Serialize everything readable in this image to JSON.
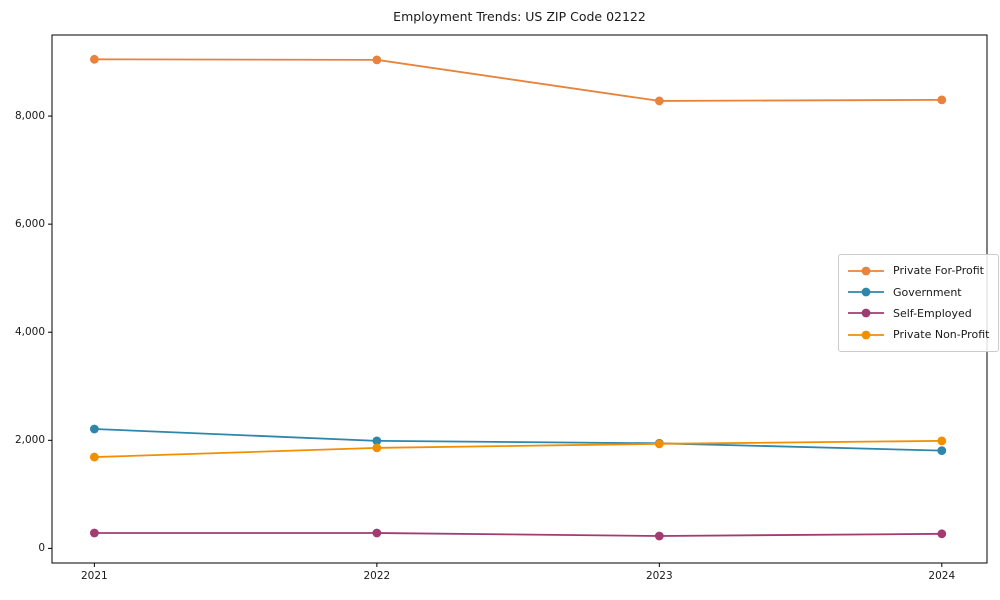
{
  "chart_data": {
    "type": "line",
    "title": "Employment Trends: US ZIP Code 02122",
    "x": [
      2021,
      2022,
      2023,
      2024
    ],
    "x_tick_labels": [
      "2021",
      "2022",
      "2023",
      "2024"
    ],
    "xlabel": "",
    "ylabel": "",
    "xlim": [
      2020.85,
      2024.16
    ],
    "ylim": [
      -270,
      9500
    ],
    "grid": false,
    "yticks": [
      {
        "value": 0,
        "label": "0"
      },
      {
        "value": 2000,
        "label": "2,000"
      },
      {
        "value": 4000,
        "label": "4,000"
      },
      {
        "value": 6000,
        "label": "6,000"
      },
      {
        "value": 8000,
        "label": "8,000"
      }
    ],
    "series": [
      {
        "name": "Private For-Profit",
        "color": "#E8823C",
        "values": [
          9050,
          9040,
          8280,
          8300
        ]
      },
      {
        "name": "Government",
        "color": "#2E86AB",
        "values": [
          2210,
          1990,
          1945,
          1810
        ]
      },
      {
        "name": "Self-Employed",
        "color": "#A23B72",
        "values": [
          285,
          285,
          230,
          270
        ]
      },
      {
        "name": "Private Non-Profit",
        "color": "#F18F01",
        "values": [
          1690,
          1860,
          1935,
          1990
        ]
      }
    ],
    "legend": {
      "position": "center-right",
      "border_color": "#cccccc"
    },
    "style": {
      "spine_color": "#000000",
      "text_color": "#1a1a1a",
      "background": "#ffffff"
    }
  }
}
